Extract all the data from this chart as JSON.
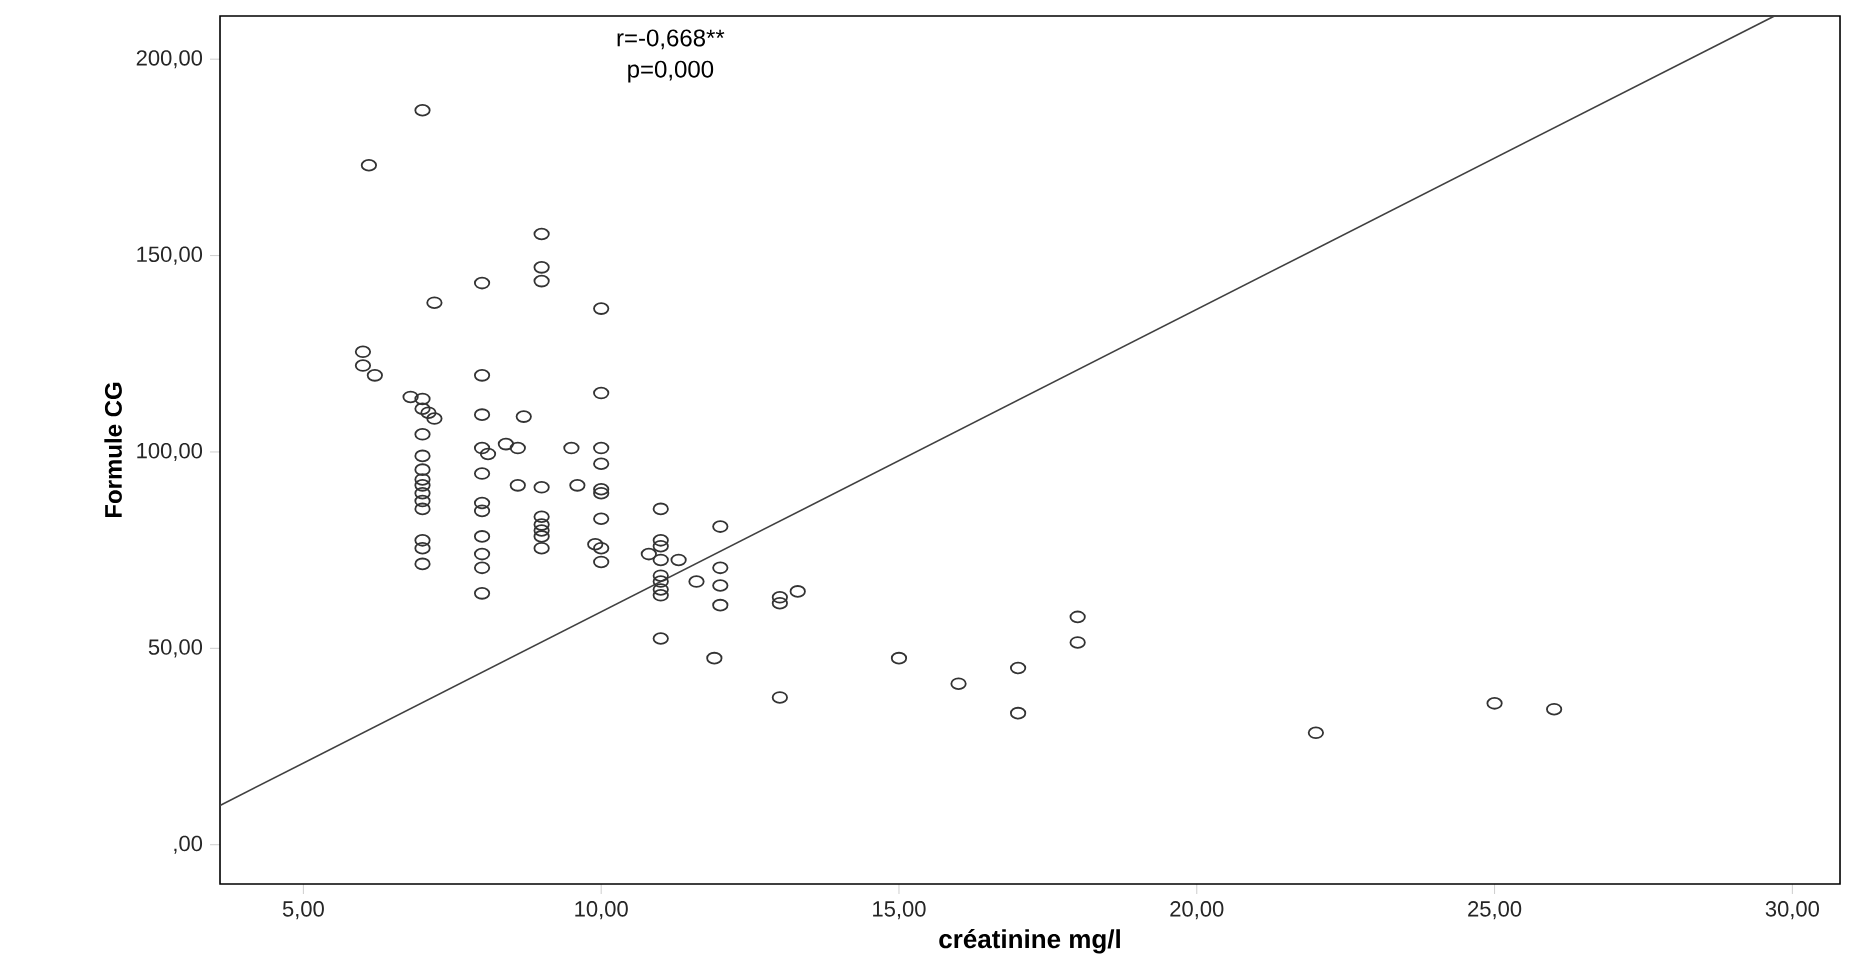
{
  "chart_data": {
    "type": "scatter",
    "xlabel": "créatinine mg/l",
    "ylabel": "Formule CG",
    "annotations": [
      "r=-0,668**",
      "p=0,000"
    ],
    "xlim": [
      3.6,
      30.8
    ],
    "ylim": [
      -10,
      211
    ],
    "xticks": [
      {
        "value": 5,
        "label": "5,00"
      },
      {
        "value": 10,
        "label": "10,00"
      },
      {
        "value": 15,
        "label": "15,00"
      },
      {
        "value": 20,
        "label": "20,00"
      },
      {
        "value": 25,
        "label": "25,00"
      },
      {
        "value": 30,
        "label": "30,00"
      }
    ],
    "yticks": [
      {
        "value": 0,
        "label": ",00"
      },
      {
        "value": 50,
        "label": "50,00"
      },
      {
        "value": 100,
        "label": "100,00"
      },
      {
        "value": 150,
        "label": "150,00"
      },
      {
        "value": 200,
        "label": "200,00"
      }
    ],
    "series": [
      {
        "marker": "circle",
        "color": "#333333",
        "x": [
          7,
          6.1,
          9,
          9,
          9,
          8,
          7.2,
          10,
          6,
          6,
          6.2,
          8,
          10,
          6.8,
          7,
          7,
          7.1,
          7.2,
          8,
          8.7,
          7,
          8,
          8.1,
          8.4,
          8.6,
          9.5,
          10,
          10,
          7,
          7,
          7,
          7,
          7,
          7,
          7,
          8,
          8.6,
          9,
          9.6,
          10,
          10,
          8,
          8,
          9,
          9,
          9,
          9,
          9,
          10,
          11,
          12,
          8,
          8,
          8,
          7,
          7,
          7,
          9.9,
          10,
          10,
          11,
          11,
          10.8,
          11,
          11.3,
          11,
          11,
          11,
          11,
          11.6,
          12,
          12,
          12,
          8,
          11,
          11.9,
          13,
          13,
          13.3,
          13,
          15,
          16,
          17,
          17,
          18,
          18,
          22,
          25,
          26
        ],
        "values": [
          187,
          173,
          155.5,
          147,
          143.5,
          143,
          138,
          136.5,
          125.5,
          122,
          119.5,
          119.5,
          115,
          114,
          113.5,
          111,
          110,
          108.5,
          109.5,
          109,
          104.5,
          101,
          99.5,
          102,
          101,
          101,
          101,
          97,
          99,
          95.5,
          93,
          91.5,
          89.5,
          87.5,
          85.5,
          94.5,
          91.5,
          91,
          91.5,
          90.5,
          89.5,
          87,
          85,
          83.5,
          81.5,
          80,
          78.5,
          75.5,
          83,
          85.5,
          81,
          78.5,
          74,
          70.5,
          77.5,
          75.5,
          71.5,
          76.5,
          75.5,
          72,
          77.5,
          76,
          74,
          72.5,
          72.5,
          68.5,
          67,
          65,
          63.5,
          67,
          70.5,
          66,
          61,
          64,
          52.5,
          47.5,
          63,
          61.5,
          64.5,
          37.5,
          47.5,
          41,
          45,
          33.5,
          58,
          51.5,
          28.5,
          36,
          34.5
        ]
      },
      {
        "type": "line",
        "color": "#404040",
        "line_style": "solid",
        "x": [
          3.6,
          29.7
        ],
        "values": [
          10,
          211
        ]
      }
    ]
  }
}
